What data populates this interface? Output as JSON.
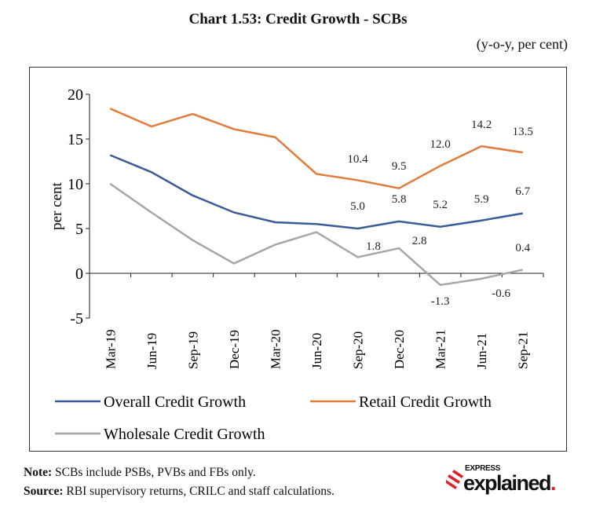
{
  "chart_data": {
    "type": "line",
    "title": "Chart 1.53: Credit Growth - SCBs",
    "subtitle": "(y-o-y, per cent)",
    "ylabel": "per cent",
    "xlabel": "",
    "ylim": [
      -5,
      20
    ],
    "yticks": [
      "-5",
      "0",
      "5",
      "10",
      "15",
      "20"
    ],
    "categories": [
      "Mar-19",
      "Jun-19",
      "Sep-19",
      "Dec-19",
      "Mar-20",
      "Jun-20",
      "Sep-20",
      "Dec-20",
      "Mar-21",
      "Jun-21",
      "Sep-21"
    ],
    "grid": false,
    "legend_placement": "bottom",
    "series": [
      {
        "name": "Overall Credit Growth",
        "color": "#3a5a98",
        "values": [
          13.2,
          11.3,
          8.7,
          6.8,
          5.7,
          5.5,
          5.0,
          5.8,
          5.2,
          5.9,
          6.7
        ],
        "labels": [
          "",
          "",
          "",
          "",
          "",
          "",
          "5.0",
          "5.8",
          "5.2",
          "5.9",
          "6.7"
        ]
      },
      {
        "name": "Retail Credit Growth",
        "color": "#e07b3c",
        "values": [
          18.4,
          16.4,
          17.8,
          16.1,
          15.2,
          11.1,
          10.4,
          9.5,
          12.0,
          14.2,
          13.5
        ],
        "labels": [
          "",
          "",
          "",
          "",
          "",
          "",
          "10.4",
          "9.5",
          "12.0",
          "14.2",
          "13.5"
        ]
      },
      {
        "name": "Wholesale Credit Growth",
        "color": "#a6a6a6",
        "values": [
          10.0,
          6.8,
          3.7,
          1.1,
          3.2,
          4.6,
          1.8,
          2.8,
          -1.3,
          -0.6,
          0.4
        ],
        "labels": [
          "",
          "",
          "",
          "",
          "",
          "",
          "1.8",
          "2.8",
          "-1.3",
          "-0.6",
          "0.4"
        ]
      }
    ]
  },
  "notes": {
    "note_label": "Note:",
    "note_text": " SCBs include PSBs, PVBs and FBs only.",
    "source_label": "Source:",
    "source_text": " RBI supervisory returns, CRILC and staff calculations."
  },
  "logo": {
    "top": "EXPRESS",
    "bottom": "explained",
    "color": "#e31e24"
  }
}
